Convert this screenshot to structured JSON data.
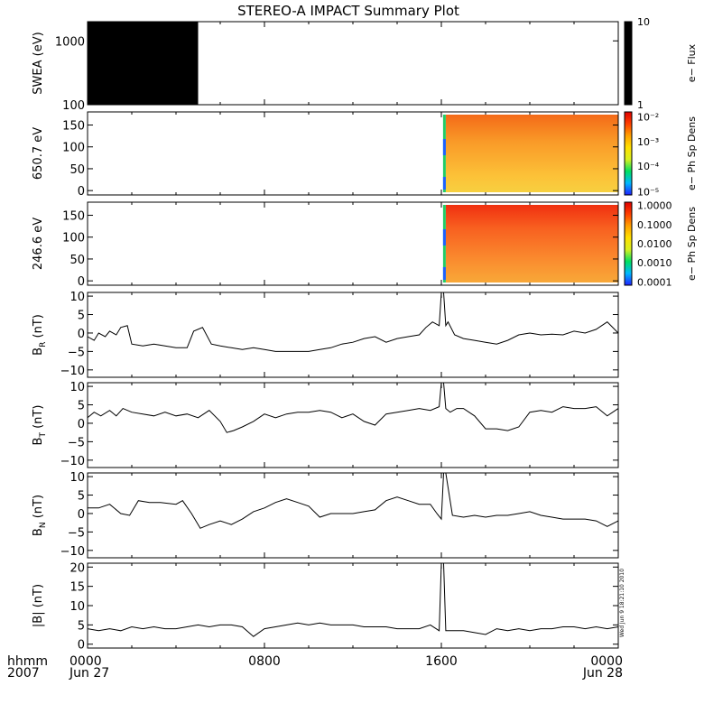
{
  "title": "STEREO-A IMPACT Summary Plot",
  "stamp": "Wed Jun  9 18:21:10 2010",
  "x_axis": {
    "row1_label": "hhmm",
    "row2_label": "2007",
    "ticks": [
      {
        "hour": 0,
        "label": "0000",
        "sub": "Jun 27"
      },
      {
        "hour": 8,
        "label": "0800",
        "sub": ""
      },
      {
        "hour": 16,
        "label": "1600",
        "sub": ""
      },
      {
        "hour": 24,
        "label": "0000",
        "sub": "Jun 28"
      }
    ]
  },
  "chart_data": [
    {
      "type": "heatmap",
      "id": "swea",
      "ylabel": "SWEA (eV)",
      "ylim": [
        100,
        2000
      ],
      "yscale": "log",
      "yticks": [
        {
          "v": 100,
          "label": "100"
        },
        {
          "v": 1000,
          "label": "1000"
        }
      ],
      "data_x_range_hours": [
        0,
        5
      ],
      "fill_color": "#000000",
      "colorbar": {
        "label": "e− Flux",
        "ticks": [
          {
            "label": "10",
            "frac": 1.0
          },
          {
            "label": "1",
            "frac": 0.0
          }
        ],
        "colors": [
          "#000000"
        ]
      }
    },
    {
      "type": "heatmap",
      "id": "pad650",
      "ylabel": "650.7 eV",
      "ylim": [
        -10,
        180
      ],
      "yticks": [
        {
          "v": 0,
          "label": "0"
        },
        {
          "v": 50,
          "label": "50"
        },
        {
          "v": 100,
          "label": "100"
        },
        {
          "v": 150,
          "label": "150"
        }
      ],
      "data_start_hour": 16.2,
      "colorbar": {
        "label": "e− Ph Sp Dens",
        "ticks": [
          {
            "label": "10⁻²",
            "frac": 0.94
          },
          {
            "label": "10⁻³",
            "frac": 0.64
          },
          {
            "label": "10⁻⁴",
            "frac": 0.35
          },
          {
            "label": "10⁻⁵",
            "frac": 0.04
          }
        ],
        "colors": [
          "#2020ff",
          "#00b8ff",
          "#00e060",
          "#d8f020",
          "#ffe000",
          "#ffa000",
          "#ff4000",
          "#e00000"
        ]
      }
    },
    {
      "type": "heatmap",
      "id": "pad246",
      "ylabel": "246.6 eV",
      "ylim": [
        -10,
        180
      ],
      "yticks": [
        {
          "v": 0,
          "label": "0"
        },
        {
          "v": 50,
          "label": "50"
        },
        {
          "v": 100,
          "label": "100"
        },
        {
          "v": 150,
          "label": "150"
        }
      ],
      "data_start_hour": 16.2,
      "colorbar": {
        "label": "e− Ph Sp Dens",
        "ticks": [
          {
            "label": "1.0000",
            "frac": 0.96
          },
          {
            "label": "0.1000",
            "frac": 0.73
          },
          {
            "label": "0.0100",
            "frac": 0.5
          },
          {
            "label": "0.0010",
            "frac": 0.27
          },
          {
            "label": "0.0001",
            "frac": 0.04
          }
        ],
        "colors": [
          "#2020ff",
          "#00b8ff",
          "#00e060",
          "#d8f020",
          "#ffe000",
          "#ffa000",
          "#ff4000",
          "#e00000"
        ]
      }
    },
    {
      "type": "line",
      "id": "br",
      "ylabel": "B",
      "ysub": "R",
      "yunit": " (nT)",
      "ylim": [
        -12,
        11
      ],
      "yticks": [
        {
          "v": -10,
          "label": "−10"
        },
        {
          "v": -5,
          "label": "−5"
        },
        {
          "v": 0,
          "label": "0"
        },
        {
          "v": 5,
          "label": "5"
        },
        {
          "v": 10,
          "label": "10"
        }
      ],
      "x": [
        0,
        0.3,
        0.5,
        0.8,
        1.0,
        1.3,
        1.5,
        1.8,
        2.0,
        2.5,
        3.0,
        3.5,
        4.0,
        4.5,
        4.8,
        5.2,
        5.6,
        6.0,
        6.5,
        7.0,
        7.5,
        8.0,
        8.5,
        9.0,
        9.5,
        10.0,
        10.5,
        11.0,
        11.5,
        12.0,
        12.5,
        13.0,
        13.5,
        14.0,
        14.5,
        15.0,
        15.3,
        15.6,
        15.9,
        16.0,
        16.1,
        16.2,
        16.3,
        16.6,
        17.0,
        17.5,
        18.0,
        18.5,
        19.0,
        19.5,
        20.0,
        20.5,
        21.0,
        21.5,
        22.0,
        22.5,
        23.0,
        23.5,
        24.0
      ],
      "y": [
        -1,
        -2,
        0,
        -1,
        0.5,
        -0.5,
        1.5,
        2,
        -3,
        -3.5,
        -3,
        -3.5,
        -4,
        -4,
        0.5,
        1.5,
        -3,
        -3.5,
        -4,
        -4.5,
        -4,
        -4.5,
        -5,
        -5,
        -5,
        -5,
        -4.5,
        -4,
        -3,
        -2.5,
        -1.5,
        -1,
        -2.5,
        -1.5,
        -1,
        -0.5,
        1.5,
        3,
        2,
        11,
        11,
        2,
        3,
        -0.5,
        -1.5,
        -2,
        -2.5,
        -3,
        -2,
        -0.5,
        0,
        -0.5,
        -0.3,
        -0.5,
        0.5,
        0,
        1,
        3,
        0
      ]
    },
    {
      "type": "line",
      "id": "bt",
      "ylabel": "B",
      "ysub": "T",
      "yunit": " (nT)",
      "ylim": [
        -12,
        11
      ],
      "yticks": [
        {
          "v": -10,
          "label": "−10"
        },
        {
          "v": -5,
          "label": "−5"
        },
        {
          "v": 0,
          "label": "0"
        },
        {
          "v": 5,
          "label": "5"
        },
        {
          "v": 10,
          "label": "10"
        }
      ],
      "x": [
        0,
        0.3,
        0.6,
        1.0,
        1.3,
        1.6,
        2.0,
        2.5,
        3.0,
        3.5,
        4.0,
        4.5,
        5.0,
        5.5,
        6.0,
        6.3,
        6.6,
        7.0,
        7.5,
        8.0,
        8.5,
        9.0,
        9.5,
        10.0,
        10.5,
        11.0,
        11.5,
        12.0,
        12.5,
        13.0,
        13.5,
        14.0,
        14.5,
        15.0,
        15.5,
        15.9,
        16.0,
        16.1,
        16.2,
        16.4,
        16.7,
        17.0,
        17.5,
        18.0,
        18.5,
        19.0,
        19.5,
        20.0,
        20.5,
        21.0,
        21.5,
        22.0,
        22.5,
        23.0,
        23.5,
        24.0
      ],
      "y": [
        1.5,
        3,
        2,
        3.5,
        2,
        4,
        3,
        2.5,
        2,
        3,
        2,
        2.5,
        1.5,
        3.5,
        0.5,
        -2.5,
        -2,
        -1,
        0.5,
        2.5,
        1.5,
        2.5,
        3,
        3,
        3.5,
        3,
        1.5,
        2.5,
        0.5,
        -0.5,
        2.5,
        3,
        3.5,
        4,
        3.5,
        4.5,
        11,
        11,
        4,
        3,
        4,
        4,
        2,
        -1.5,
        -1.5,
        -2,
        -1,
        3,
        3.5,
        3,
        4.5,
        4,
        4,
        4.5,
        2,
        4
      ]
    },
    {
      "type": "line",
      "id": "bn",
      "ylabel": "B",
      "ysub": "N",
      "yunit": " (nT)",
      "ylim": [
        -12,
        11
      ],
      "yticks": [
        {
          "v": -10,
          "label": "−10"
        },
        {
          "v": -5,
          "label": "−5"
        },
        {
          "v": 0,
          "label": "0"
        },
        {
          "v": 5,
          "label": "5"
        },
        {
          "v": 10,
          "label": "10"
        }
      ],
      "x": [
        0,
        0.5,
        1.0,
        1.5,
        1.9,
        2.3,
        2.8,
        3.3,
        4.0,
        4.3,
        4.7,
        5.1,
        5.5,
        6.0,
        6.5,
        7.0,
        7.5,
        8.0,
        8.5,
        9.0,
        9.5,
        10.0,
        10.5,
        11.0,
        11.5,
        12.0,
        12.5,
        13.0,
        13.5,
        14.0,
        14.5,
        15.0,
        15.5,
        15.8,
        16.0,
        16.1,
        16.2,
        16.5,
        17.0,
        17.5,
        18.0,
        18.5,
        19.0,
        19.5,
        20.0,
        20.5,
        21.0,
        21.5,
        22.0,
        22.5,
        23.0,
        23.5,
        24.0
      ],
      "y": [
        1.5,
        1.5,
        2.5,
        0,
        -0.5,
        3.5,
        3,
        3,
        2.5,
        3.5,
        0,
        -4,
        -3,
        -2,
        -3,
        -1.5,
        0.5,
        1.5,
        3,
        4,
        3,
        2,
        -1,
        0,
        0,
        0,
        0.5,
        1,
        3.5,
        4.5,
        3.5,
        2.5,
        2.5,
        0,
        -1.5,
        11,
        11,
        -0.5,
        -1,
        -0.5,
        -1,
        -0.5,
        -0.5,
        0,
        0.5,
        -0.5,
        -1,
        -1.5,
        -1.5,
        -1.5,
        -2,
        -3.5,
        -2
      ]
    },
    {
      "type": "line",
      "id": "babs",
      "ylabel": "|B| (nT)",
      "ylim": [
        -1,
        21
      ],
      "yticks": [
        {
          "v": 0,
          "label": "0"
        },
        {
          "v": 5,
          "label": "5"
        },
        {
          "v": 10,
          "label": "10"
        },
        {
          "v": 15,
          "label": "15"
        },
        {
          "v": 20,
          "label": "20"
        }
      ],
      "x": [
        0,
        0.5,
        1.0,
        1.5,
        2.0,
        2.5,
        3.0,
        3.5,
        4.0,
        4.5,
        5.0,
        5.5,
        6.0,
        6.5,
        7.0,
        7.5,
        8.0,
        8.5,
        9.0,
        9.5,
        10.0,
        10.5,
        11.0,
        11.5,
        12.0,
        12.5,
        13.0,
        13.5,
        14.0,
        14.5,
        15.0,
        15.5,
        15.9,
        16.0,
        16.1,
        16.2,
        16.4,
        17.0,
        17.5,
        18.0,
        18.5,
        19.0,
        19.5,
        20.0,
        20.5,
        21.0,
        21.5,
        22.0,
        22.5,
        23.0,
        23.5,
        24.0
      ],
      "y": [
        4,
        3.5,
        4,
        3.5,
        4.5,
        4,
        4.5,
        4,
        4,
        4.5,
        5,
        4.5,
        5,
        5,
        4.5,
        2,
        4,
        4.5,
        5,
        5.5,
        5,
        5.5,
        5,
        5,
        5,
        4.5,
        4.5,
        4.5,
        4,
        4,
        4,
        5,
        3.5,
        21,
        21,
        3.5,
        3.5,
        3.5,
        3,
        2.5,
        4,
        3.5,
        4,
        3.5,
        4,
        4,
        4.5,
        4.5,
        4,
        4.5,
        4,
        4.5
      ]
    }
  ]
}
